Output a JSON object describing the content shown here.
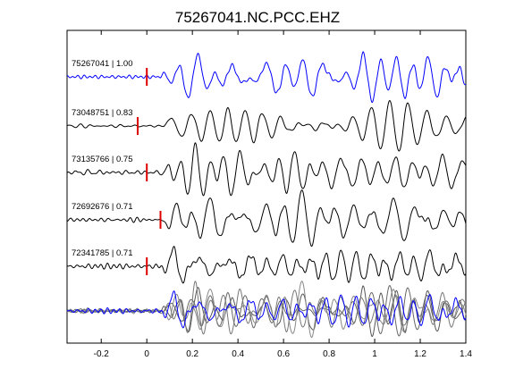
{
  "chart_data": {
    "type": "line",
    "title": "75267041.NC.PCC.EHZ",
    "xlabel": "",
    "ylabel": "",
    "xlim": [
      -0.35,
      1.4
    ],
    "xticks": [
      -0.2,
      0,
      0.2,
      0.4,
      0.6,
      0.8,
      1,
      1.2,
      1.4
    ],
    "xtick_labels": [
      "-0.2",
      "0",
      "0.2",
      "0.4",
      "0.6",
      "0.8",
      "1",
      "1.2",
      "1.4"
    ],
    "grid": false,
    "traces": [
      {
        "label": "75267041 | 1.00",
        "event_id": "75267041",
        "correlation": 1.0,
        "pick_time": 0.0,
        "color": "#0000ff",
        "seed": 1,
        "onset": 0.06
      },
      {
        "label": "73048751 | 0.83",
        "event_id": "73048751",
        "correlation": 0.83,
        "pick_time": -0.04,
        "color": "#000000",
        "seed": 2,
        "onset": 0.07
      },
      {
        "label": "73135766 | 0.75",
        "event_id": "73135766",
        "correlation": 0.75,
        "pick_time": 0.0,
        "color": "#000000",
        "seed": 3,
        "onset": 0.06
      },
      {
        "label": "72692676 | 0.71",
        "event_id": "72692676",
        "correlation": 0.71,
        "pick_time": 0.06,
        "color": "#000000",
        "seed": 4,
        "onset": 0.07
      },
      {
        "label": "72341785 | 0.71",
        "event_id": "72341785",
        "correlation": 0.71,
        "pick_time": 0.0,
        "color": "#000000",
        "seed": 5,
        "onset": 0.06
      }
    ],
    "stack": {
      "colors": [
        "#555555",
        "#666666",
        "#777777",
        "#888888",
        "#0000ff"
      ]
    },
    "pick_color": "#dd0000"
  }
}
